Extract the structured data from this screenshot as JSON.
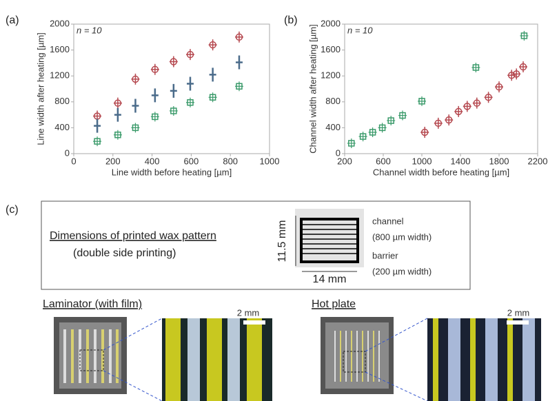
{
  "chart_data": [
    {
      "type": "scatter",
      "panel_label": "(a)",
      "annotation": "n = 10",
      "x_label": "Line width before heating [µm]",
      "y_label": "Line width after heating [µm]",
      "xlim": [
        0,
        1000
      ],
      "ylim": [
        0,
        2000
      ],
      "xticks": [
        0,
        200,
        400,
        600,
        800,
        1000
      ],
      "yticks": [
        0,
        400,
        800,
        1200,
        1600,
        2000
      ],
      "series": [
        {
          "color": "#b5484f",
          "marker": "circle",
          "x": [
            120,
            225,
            315,
            415,
            510,
            595,
            710,
            845
          ],
          "values": [
            580,
            780,
            1150,
            1300,
            1420,
            1530,
            1680,
            1800
          ]
        },
        {
          "color": "#4a6b8a",
          "marker": "plus",
          "x": [
            120,
            225,
            315,
            415,
            510,
            595,
            710,
            845
          ],
          "values": [
            430,
            600,
            740,
            900,
            970,
            1080,
            1220,
            1410
          ]
        },
        {
          "color": "#3a9a6a",
          "marker": "square",
          "x": [
            120,
            225,
            315,
            415,
            510,
            595,
            710,
            845
          ],
          "values": [
            190,
            290,
            400,
            570,
            660,
            790,
            870,
            1040
          ]
        }
      ]
    },
    {
      "type": "scatter",
      "panel_label": "(b)",
      "annotation": "n = 10",
      "x_label": "Channel width before heating [µm]",
      "y_label": "Channel width after heating [µm]",
      "xlim": [
        200,
        2200
      ],
      "ylim": [
        0,
        2000
      ],
      "xticks": [
        200,
        600,
        1000,
        1400,
        1800,
        2200
      ],
      "yticks": [
        0,
        400,
        800,
        1200,
        1600,
        2000
      ],
      "series": [
        {
          "color": "#3a9a6a",
          "marker": "square",
          "x": [
            270,
            390,
            490,
            590,
            680,
            800,
            1000,
            1560,
            2060
          ],
          "values": [
            160,
            265,
            330,
            400,
            510,
            590,
            810,
            1330,
            1820
          ]
        },
        {
          "color": "#b5484f",
          "marker": "circle",
          "x": [
            1030,
            1170,
            1280,
            1380,
            1470,
            1570,
            1690,
            1800,
            1930,
            1980,
            2050
          ],
          "values": [
            330,
            470,
            520,
            650,
            730,
            780,
            870,
            1030,
            1210,
            1230,
            1340
          ]
        }
      ]
    }
  ],
  "panel_c": {
    "panel_label": "(c)",
    "title": "Dimensions of printed wax pattern",
    "subtitle": "(double side printing)",
    "height_label": "11.5 mm",
    "width_label": "14 mm",
    "channel": "channel",
    "channel_width": "(800 µm width)",
    "barrier": "barrier",
    "barrier_width": "(200 µm width)",
    "photos": [
      {
        "label": "Laminator (with film)",
        "scale": "2 mm"
      },
      {
        "label": "Hot plate",
        "scale": "2 mm"
      }
    ]
  }
}
